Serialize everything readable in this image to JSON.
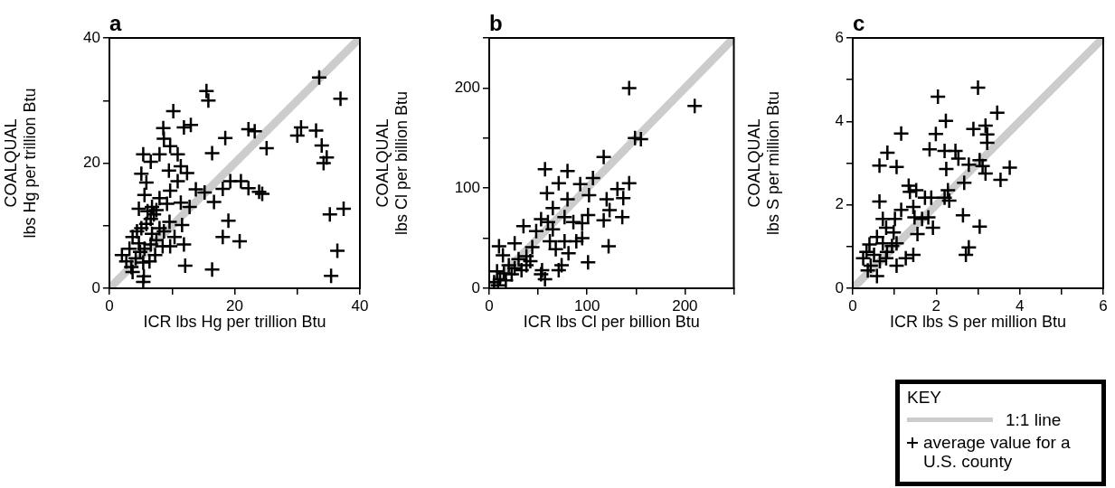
{
  "chart_data": [
    {
      "type": "scatter",
      "title": "a",
      "xlabel": "ICR lbs Hg per trillion Btu",
      "ylabel": "COALQUAL\nlbs Hg per trillion Btu",
      "xlim": [
        0,
        40
      ],
      "ylim": [
        0,
        40
      ],
      "xticks": [
        0,
        {
          "value": 10,
          "label": null
        },
        20,
        {
          "value": 30,
          "label": null
        },
        40
      ],
      "yticks": [
        0,
        {
          "value": 10,
          "label": null
        },
        20,
        {
          "value": 30,
          "label": null
        },
        40
      ],
      "series": [
        {
          "type": "line",
          "marker": "none",
          "color": "#cccccc",
          "x": [
            0,
            40
          ],
          "values": [
            0,
            40
          ]
        },
        {
          "marker": "cross",
          "color": "#000000",
          "x": [
            33.5,
            36.9,
            15.5,
            15.8,
            10.2,
            8.6,
            11.9,
            13.0,
            22.2,
            23.2,
            30.6,
            30.0,
            33.0,
            33.9,
            34.7,
            34.2,
            18.5,
            16.4,
            25.1,
            8.7,
            9.7,
            5.4,
            6.6,
            8.0,
            10.9,
            11.4,
            9.5,
            12.4,
            5.1,
            5.9,
            10.9,
            13.8,
            15.2,
            18.1,
            19.3,
            21.0,
            22.2,
            23.9,
            24.4,
            16.7,
            9.7,
            5.6,
            8.0,
            11.4,
            12.8,
            4.7,
            6.8,
            9.2,
            19.0,
            18.1,
            20.8,
            35.2,
            37.4,
            36.4,
            35.4,
            12.1,
            16.4,
            11.6,
            11.9,
            9.7,
            9.6,
            5.4,
            5.5,
            2.0,
            2.7,
            3.5,
            3.7,
            4.2,
            4.9,
            4.4,
            5.1,
            5.9,
            6.6,
            7.1,
            6.1,
            7.5,
            6.8,
            7.5,
            8.5,
            6.6,
            5.6,
            7.3,
            4.7,
            3.7,
            6.4,
            8.7,
            10.4,
            8.0,
            3.2,
            5.4
          ],
          "values": [
            33.7,
            30.3,
            31.5,
            30.0,
            28.3,
            25.6,
            25.7,
            26.1,
            25.4,
            25.1,
            25.7,
            24.4,
            25.2,
            22.8,
            20.9,
            20.0,
            24.0,
            21.6,
            22.4,
            23.9,
            22.7,
            21.4,
            20.2,
            21.4,
            21.4,
            19.5,
            18.8,
            18.4,
            18.3,
            16.9,
            17.1,
            15.8,
            15.3,
            15.9,
            17.1,
            17.1,
            16.0,
            15.4,
            15.1,
            13.8,
            15.6,
            14.9,
            14.4,
            13.7,
            13.0,
            12.7,
            13.0,
            13.5,
            10.8,
            8.2,
            7.5,
            11.8,
            12.7,
            6.0,
            2.0,
            3.6,
            3.0,
            10.1,
            7.0,
            6.7,
            10.6,
            1.0,
            1.9,
            5.3,
            4.3,
            3.4,
            2.6,
            4.8,
            5.8,
            9.1,
            9.6,
            10.3,
            11.1,
            11.8,
            12.3,
            12.5,
            8.7,
            7.7,
            6.7,
            7.0,
            6.3,
            5.3,
            7.2,
            8.2,
            4.3,
            9.1,
            8.2,
            9.6,
            6.3,
            4.1
          ]
        }
      ]
    },
    {
      "type": "scatter",
      "title": "b",
      "xlabel": "ICR lbs Cl per billion Btu",
      "ylabel": "COALQUAL\nlbs Cl per billion Btu",
      "xlim": [
        0,
        250
      ],
      "ylim": [
        0,
        250
      ],
      "xticks": [
        0,
        {
          "value": 50,
          "label": null
        },
        100,
        {
          "value": 150,
          "label": null
        },
        200,
        {
          "value": 250,
          "label": null
        }
      ],
      "yticks": [
        0,
        {
          "value": 50,
          "label": null
        },
        100,
        {
          "value": 150,
          "label": null
        },
        200,
        {
          "value": 250,
          "label": null
        }
      ],
      "series": [
        {
          "type": "line",
          "marker": "none",
          "color": "#cccccc",
          "x": [
            0,
            250
          ],
          "values": [
            0,
            250
          ]
        },
        {
          "marker": "cross",
          "color": "#000000",
          "x": [
            143,
            210,
            149,
            155,
            117,
            57,
            80,
            106,
            71,
            93,
            59,
            102,
            80,
            131,
            143,
            137,
            120,
            123,
            136,
            117,
            65,
            101,
            53,
            60,
            77,
            86,
            95,
            35,
            48,
            65,
            95,
            89,
            62,
            77,
            68,
            122,
            81,
            101,
            74,
            71,
            54,
            57,
            53,
            44,
            38,
            26,
            10,
            14,
            30,
            20,
            26,
            38,
            8,
            11,
            5,
            17,
            9,
            23,
            33,
            42,
            15
          ],
          "values": [
            200,
            182,
            150,
            149,
            131,
            119,
            117,
            110,
            105,
            104,
            95,
            93,
            89,
            99,
            105,
            90,
            89,
            78,
            71,
            68,
            80,
            73,
            69,
            66,
            71,
            66,
            65,
            62,
            57,
            59,
            50,
            47,
            47,
            47,
            39,
            42,
            35,
            26,
            23,
            18,
            18,
            9,
            14,
            41,
            32,
            45,
            42,
            33,
            29,
            23,
            20,
            23,
            17,
            9,
            6,
            8,
            3,
            14,
            18,
            27,
            15
          ]
        }
      ]
    },
    {
      "type": "scatter",
      "title": "c",
      "xlabel": "ICR lbs S per million Btu",
      "ylabel": "COALQUAL\nlbs S per million Btu",
      "xlim": [
        0,
        6
      ],
      "ylim": [
        0,
        6
      ],
      "xticks": [
        0,
        {
          "value": 1,
          "label": null
        },
        2,
        {
          "value": 3,
          "label": null
        },
        4,
        {
          "value": 5,
          "label": null
        },
        6
      ],
      "yticks": [
        0,
        {
          "value": 1,
          "label": null
        },
        2,
        {
          "value": 3,
          "label": null
        },
        4,
        {
          "value": 5,
          "label": null
        },
        6
      ],
      "legend": "bottom right",
      "legend_title": "KEY",
      "series": [
        {
          "type": "line",
          "marker": "none",
          "name": "1:1 line",
          "color": "#cccccc",
          "x": [
            0,
            6
          ],
          "values": [
            0,
            6
          ]
        },
        {
          "marker": "cross",
          "name": "average value for a U.S. county",
          "color": "#000000",
          "x": [
            3.0,
            2.04,
            3.46,
            2.23,
            1.16,
            1.99,
            2.89,
            3.18,
            3.22,
            3.22,
            0.83,
            0.64,
            1.05,
            1.84,
            2.2,
            2.46,
            2.53,
            2.24,
            2.78,
            3.04,
            3.11,
            3.18,
            3.76,
            3.54,
            2.67,
            2.28,
            2.2,
            2.31,
            1.88,
            1.73,
            1.34,
            1.37,
            1.52,
            0.64,
            2.64,
            3.04,
            2.78,
            2.71,
            1.16,
            1.45,
            1.01,
            0.72,
            1.48,
            1.66,
            1.81,
            1.92,
            1.55,
            0.8,
            0.98,
            0.58,
            0.72,
            1.05,
            0.4,
            0.33,
            0.51,
            0.65,
            0.43,
            0.8,
            1.05,
            1.27,
            1.45,
            0.25,
            0.36,
            0.58,
            0.82,
            0.94
          ],
          "values": [
            4.81,
            4.59,
            4.21,
            4.01,
            3.71,
            3.7,
            3.82,
            3.9,
            3.69,
            3.49,
            3.25,
            2.94,
            2.91,
            3.33,
            3.29,
            3.29,
            3.11,
            2.86,
            2.96,
            3.07,
            2.93,
            2.75,
            2.89,
            2.6,
            2.53,
            2.35,
            2.17,
            2.1,
            2.17,
            2.17,
            2.46,
            2.31,
            2.35,
            2.08,
            1.75,
            1.48,
            0.98,
            0.8,
            1.88,
            1.95,
            1.66,
            1.66,
            1.7,
            1.66,
            1.7,
            1.45,
            1.3,
            1.45,
            1.34,
            1.23,
            1.08,
            1.08,
            1.05,
            0.87,
            0.8,
            0.65,
            0.54,
            0.72,
            0.54,
            0.72,
            0.8,
            0.72,
            0.43,
            0.29,
            0.87,
            1.01
          ]
        }
      ]
    }
  ]
}
